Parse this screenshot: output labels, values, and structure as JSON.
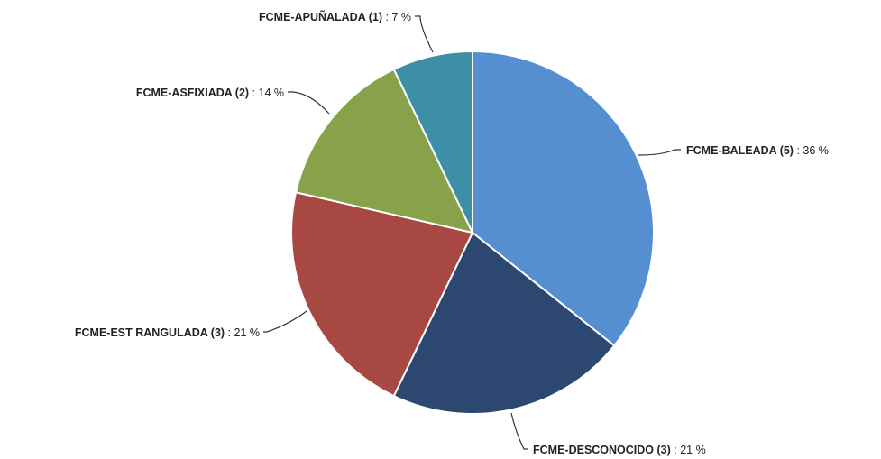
{
  "chart_data": {
    "type": "pie",
    "title": "",
    "slices": [
      {
        "name": "FCME-BALEADA",
        "count": 5,
        "percent": 36,
        "color": "#558fd1",
        "label_sep": " : "
      },
      {
        "name": "FCME-DESCONOCIDO",
        "count": 3,
        "percent": 21,
        "color": "#2c4770",
        "label_sep": " : "
      },
      {
        "name": "FCME-EST RANGULADA",
        "count": 3,
        "percent": 21,
        "color": "#a84843",
        "label_sep": " : "
      },
      {
        "name": "FCME-ASFIXIADA",
        "count": 2,
        "percent": 14,
        "color": "#87a24a",
        "label_sep": " : "
      },
      {
        "name": "FCME-APUÑALADA",
        "count": 1,
        "percent": 7,
        "color": "#3d8ea7",
        "label_sep": " : "
      }
    ],
    "start_angle": "12 o'clock",
    "direction": "clockwise",
    "legend": "none, labels beside slices with leader lines"
  }
}
